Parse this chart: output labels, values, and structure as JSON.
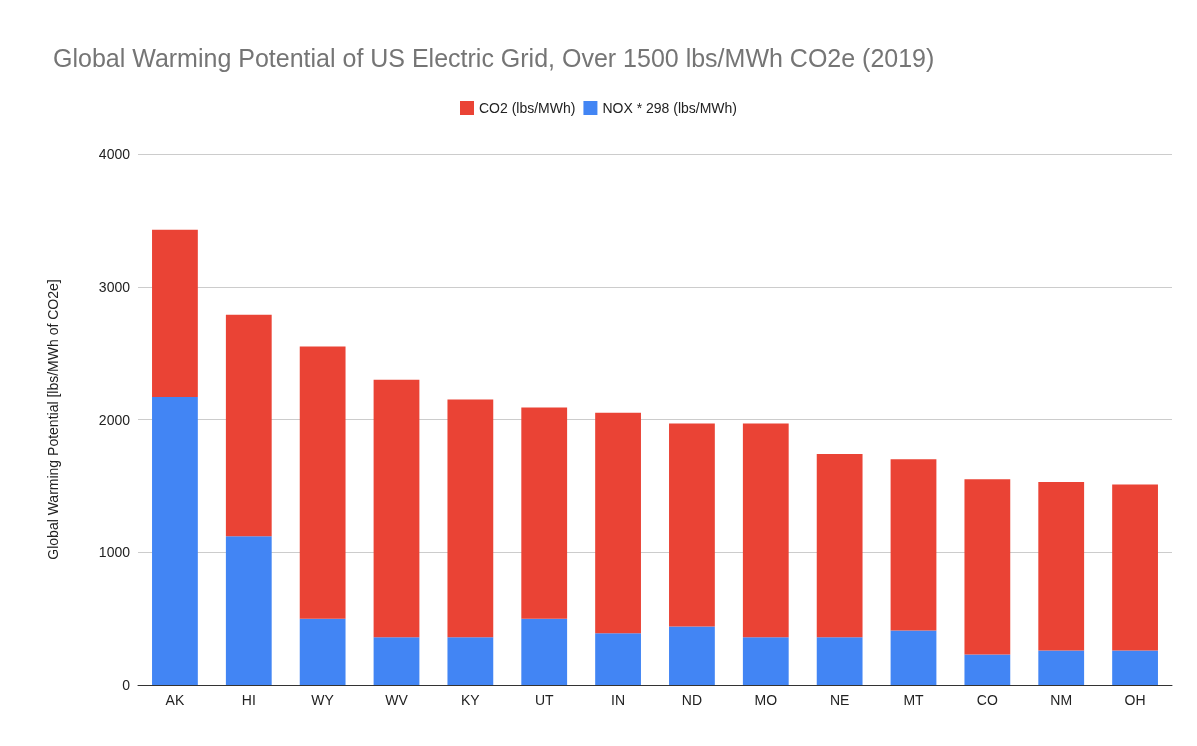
{
  "chart_data": {
    "type": "bar",
    "title": "Global Warming Potential of US Electric Grid, Over 1500 lbs/MWh CO2e (2019)",
    "ylabel": "Global Warming Potential [lbs/MWh of CO2e]",
    "categories": [
      "AK",
      "HI",
      "WY",
      "WV",
      "KY",
      "UT",
      "IN",
      "ND",
      "MO",
      "NE",
      "MT",
      "CO",
      "NM",
      "OH"
    ],
    "stacked": true,
    "series": [
      {
        "name": "NOX * 298 (lbs/MWh)",
        "color": "#4285f4",
        "values": [
          2170,
          1120,
          500,
          360,
          360,
          500,
          390,
          440,
          360,
          360,
          410,
          230,
          260,
          260
        ]
      },
      {
        "name": "CO2 (lbs/MWh)",
        "color": "#ea4335",
        "values": [
          1260,
          1670,
          2050,
          1940,
          1790,
          1590,
          1660,
          1530,
          1610,
          1380,
          1290,
          1320,
          1270,
          1250
        ]
      }
    ],
    "ylim": [
      0,
      4000
    ],
    "yticks": [
      0,
      1000,
      2000,
      3000,
      4000
    ],
    "grid": "y",
    "legend": "top"
  }
}
